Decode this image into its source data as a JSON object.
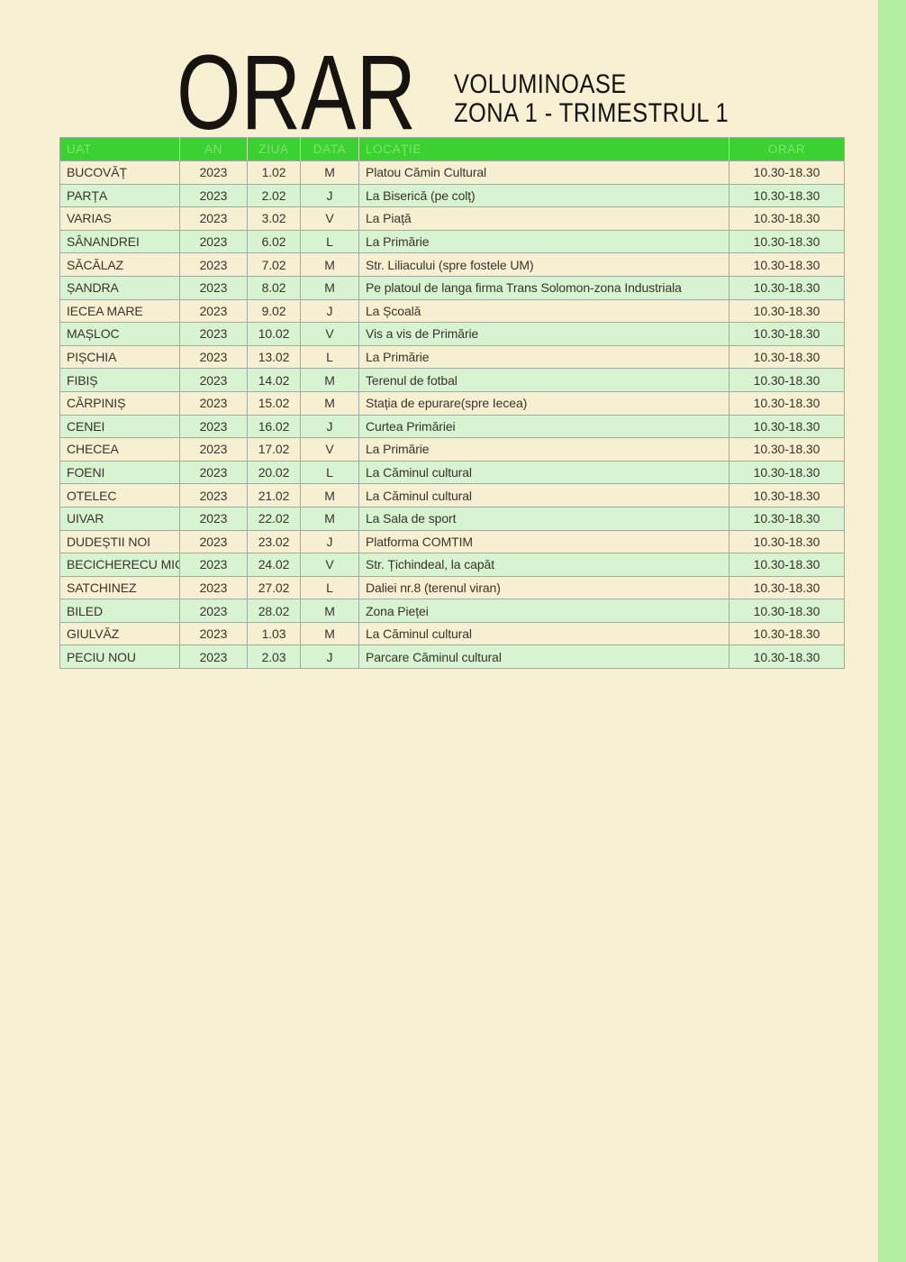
{
  "header": {
    "title": "ORAR",
    "subtitle_line1": "VOLUMINOASE",
    "subtitle_line2": "ZONA 1 - TRIMESTRUL 1"
  },
  "table": {
    "columns": [
      "UAT",
      "AN",
      "ZIUA",
      "DATA",
      "LOCAȚIE",
      "ORAR"
    ],
    "column_keys": [
      "uat",
      "an",
      "ziua",
      "data",
      "locatie",
      "orar"
    ],
    "rows": [
      [
        "BUCOVĂȚ",
        "2023",
        "1.02",
        "M",
        "Platou Cămin Cultural",
        "10.30-18.30"
      ],
      [
        "PARȚA",
        "2023",
        "2.02",
        "J",
        "La Biserică (pe colț)",
        "10.30-18.30"
      ],
      [
        "VARIAS",
        "2023",
        "3.02",
        "V",
        "La Piață",
        "10.30-18.30"
      ],
      [
        "SÂNANDREI",
        "2023",
        "6.02",
        "L",
        "La Primărie",
        "10.30-18.30"
      ],
      [
        "SĂCĂLAZ",
        "2023",
        "7.02",
        "M",
        "Str. Liliacului (spre fostele UM)",
        "10.30-18.30"
      ],
      [
        "ȘANDRA",
        "2023",
        "8.02",
        "M",
        "Pe platoul de langa firma Trans Solomon-zona Industriala",
        "10.30-18.30"
      ],
      [
        "IECEA MARE",
        "2023",
        "9.02",
        "J",
        "La Școală",
        "10.30-18.30"
      ],
      [
        "MAȘLOC",
        "2023",
        "10.02",
        "V",
        "Vis a vis de Primărie",
        "10.30-18.30"
      ],
      [
        "PIȘCHIA",
        "2023",
        "13.02",
        "L",
        "La Primărie",
        "10.30-18.30"
      ],
      [
        "FIBIȘ",
        "2023",
        "14.02",
        "M",
        "Terenul de fotbal",
        "10.30-18.30"
      ],
      [
        "CĂRPINIȘ",
        "2023",
        "15.02",
        "M",
        "Stația de epurare(spre Iecea)",
        "10.30-18.30"
      ],
      [
        "CENEI",
        "2023",
        "16.02",
        "J",
        "Curtea Primăriei",
        "10.30-18.30"
      ],
      [
        "CHECEA",
        "2023",
        "17.02",
        "V",
        "La Primărie",
        "10.30-18.30"
      ],
      [
        "FOENI",
        "2023",
        "20.02",
        "L",
        "La Căminul cultural",
        "10.30-18.30"
      ],
      [
        "OTELEC",
        "2023",
        "21.02",
        "M",
        "La Căminul cultural",
        "10.30-18.30"
      ],
      [
        "UIVAR",
        "2023",
        "22.02",
        "M",
        "La Sala de sport",
        "10.30-18.30"
      ],
      [
        "DUDEȘTII NOI",
        "2023",
        "23.02",
        "J",
        "Platforma COMTIM",
        "10.30-18.30"
      ],
      [
        "BECICHERECU MIC",
        "2023",
        "24.02",
        "V",
        "Str. Țichindeal, la capăt",
        "10.30-18.30"
      ],
      [
        "SATCHINEZ",
        "2023",
        "27.02",
        "L",
        "Daliei nr.8 (terenul viran)",
        "10.30-18.30"
      ],
      [
        "BILED",
        "2023",
        "28.02",
        "M",
        "Zona Pieței",
        "10.30-18.30"
      ],
      [
        "GIULVĂZ",
        "2023",
        "1.03",
        "M",
        "La Căminul cultural",
        "10.30-18.30"
      ],
      [
        "PECIU NOU",
        "2023",
        "2.03",
        "J",
        "Parcare Căminul cultural",
        "10.30-18.30"
      ]
    ]
  },
  "colors": {
    "page_background": "#f7f0d2",
    "side_bar_green": "#b2efa2",
    "header_green": "#3cd132",
    "header_text_green": "#7fe36d",
    "row_cream": "#f7efd2",
    "row_green": "#d7f3d2",
    "cell_border": "#9fab9c",
    "text_dark": "#38332b",
    "title_black": "#161310"
  }
}
